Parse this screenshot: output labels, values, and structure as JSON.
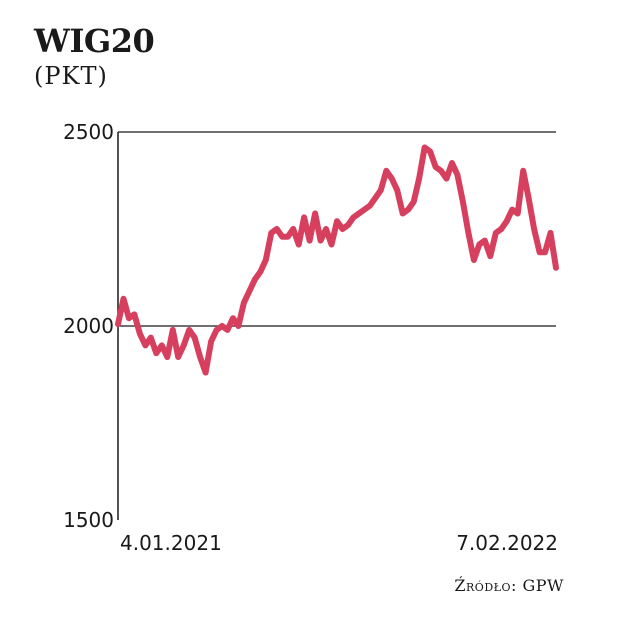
{
  "header": {
    "title": "WIG20",
    "subtitle": "(PKT)"
  },
  "source": "Źródło: GPW",
  "colors": {
    "series": "#d6405e",
    "axis": "#1a1a1a",
    "grid": "#1a1a1a"
  },
  "chart_data": {
    "type": "line",
    "title": "WIG20",
    "ylabel": "(PKT)",
    "xlabel": "",
    "ylim": [
      1500,
      2500
    ],
    "yticks": [
      "2500",
      "2000",
      "1500"
    ],
    "ytick_values": [
      2500,
      2000,
      1500
    ],
    "grid": true,
    "x_start_label": "4.01.2021",
    "x_end_label": "7.02.2022",
    "series": [
      {
        "values": [
          2005,
          2070,
          2020,
          2030,
          1980,
          1950,
          1970,
          1930,
          1950,
          1920,
          1990,
          1920,
          1950,
          1990,
          1970,
          1920,
          1880,
          1960,
          1990,
          2000,
          1990,
          2020,
          2000,
          2060,
          2090,
          2120,
          2140,
          2170,
          2240,
          2250,
          2230,
          2230,
          2250,
          2210,
          2280,
          2220,
          2290,
          2220,
          2250,
          2210,
          2270,
          2250,
          2260,
          2280,
          2290,
          2300,
          2310,
          2330,
          2350,
          2400,
          2380,
          2350,
          2290,
          2300,
          2320,
          2380,
          2460,
          2450,
          2410,
          2400,
          2380,
          2420,
          2390,
          2320,
          2240,
          2170,
          2210,
          2220,
          2180,
          2240,
          2250,
          2270,
          2300,
          2290,
          2400,
          2330,
          2250,
          2190,
          2190,
          2240,
          2150
        ]
      }
    ]
  }
}
